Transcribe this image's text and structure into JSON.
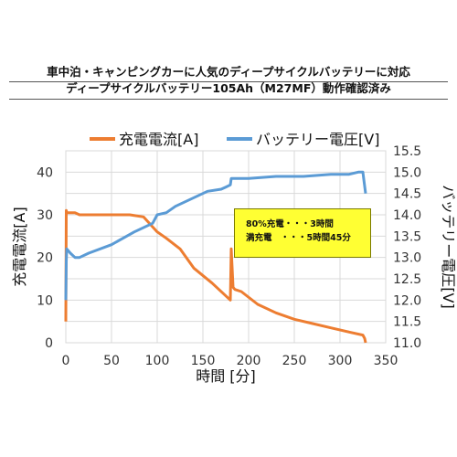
{
  "title": {
    "line1": "車中泊・キャンピングカーに人気のディープサイクルバッテリーに対応",
    "line2": "ディープサイクルバッテリー105Ah（M27MF）動作確認済み"
  },
  "annotation": {
    "line1": "80%充電・・・3時間",
    "line2": "満充電　・・・5時間45分"
  },
  "colors": {
    "current": "#ed7d31",
    "voltage": "#5b9bd5",
    "annotation_bg": "#ffff33"
  },
  "chart_data": {
    "type": "line",
    "xlabel": "時間 [分]",
    "ylabel_left": "充電電流[A]",
    "ylabel_right": "バッテリー電圧[V]",
    "xlim": [
      0,
      350
    ],
    "ylim_left": [
      0,
      45
    ],
    "ylim_right": [
      11.0,
      15.5
    ],
    "x_ticks": [
      "0",
      "50",
      "100",
      "150",
      "200",
      "250",
      "300",
      "350"
    ],
    "y_left_ticks": [
      "0",
      "10",
      "20",
      "30",
      "40"
    ],
    "y_right_ticks": [
      "11.0",
      "11.5",
      "12.0",
      "12.5",
      "13.0",
      "13.5",
      "14.0",
      "14.5",
      "15.0",
      "15.5"
    ],
    "grid": true,
    "legend_position": "top",
    "series": [
      {
        "name": "充電電流[A]",
        "axis": "left",
        "x": [
          0,
          0.5,
          1,
          10,
          15,
          25,
          50,
          70,
          85,
          100,
          110,
          125,
          140,
          160,
          180,
          181,
          183,
          185,
          192,
          210,
          230,
          250,
          270,
          290,
          310,
          325,
          327,
          328
        ],
        "y": [
          5,
          31,
          30.5,
          30.5,
          30,
          30,
          30,
          30,
          29.5,
          26,
          24.5,
          22,
          17.5,
          14,
          10,
          22,
          13,
          12.5,
          12,
          9,
          7,
          5.5,
          4.5,
          3.5,
          2.5,
          1.8,
          1,
          0
        ]
      },
      {
        "name": "バッテリー電圧[V]",
        "axis": "right",
        "x": [
          0,
          0.5,
          1,
          5,
          10,
          15,
          25,
          50,
          75,
          95,
          100,
          110,
          120,
          135,
          155,
          170,
          175,
          180,
          181,
          200,
          230,
          260,
          290,
          300,
          310,
          320,
          325,
          328
        ],
        "y": [
          12.0,
          12.9,
          13.2,
          13.1,
          13.0,
          13.0,
          13.1,
          13.3,
          13.6,
          13.8,
          14.0,
          14.05,
          14.2,
          14.35,
          14.55,
          14.6,
          14.65,
          14.7,
          14.85,
          14.85,
          14.9,
          14.9,
          14.95,
          14.95,
          14.95,
          15.0,
          15.0,
          14.5
        ]
      }
    ]
  }
}
